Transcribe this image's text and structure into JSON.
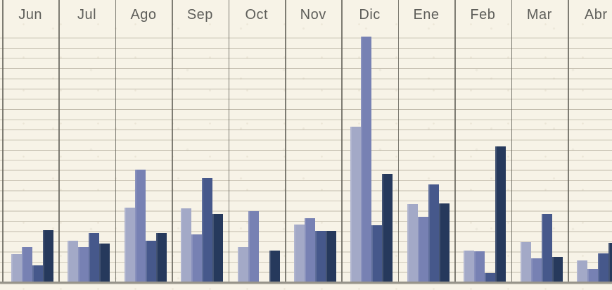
{
  "chart_data": {
    "type": "bar",
    "title": "",
    "categories": [
      "Jun",
      "Jul",
      "Ago",
      "Sep",
      "Oct",
      "Nov",
      "Dic",
      "Ene",
      "Feb",
      "Mar",
      "Abr"
    ],
    "series": [
      {
        "name": "series-1-light",
        "color": "#a3a9c7",
        "values": [
          41,
          60,
          107,
          106,
          51,
          83,
          222,
          112,
          46,
          58,
          32
        ]
      },
      {
        "name": "series-2-medium",
        "color": "#7781b3",
        "values": [
          51,
          51,
          161,
          69,
          102,
          92,
          350,
          94,
          45,
          35,
          20
        ]
      },
      {
        "name": "series-3-steel",
        "color": "#46588b",
        "values": [
          25,
          71,
          60,
          149,
          0,
          74,
          82,
          140,
          14,
          98,
          42
        ]
      },
      {
        "name": "series-4-navy",
        "color": "#26395c",
        "values": [
          75,
          56,
          71,
          98,
          46,
          74,
          155,
          113,
          194,
          37,
          57
        ]
      }
    ],
    "xlabel": "",
    "ylabel": "",
    "ylim": [
      0,
      362
    ],
    "x_axis_position": "top",
    "legend_position": "none",
    "grid": {
      "horizontal": true,
      "vertical": true
    },
    "colors": {
      "background": "#f7f3e7",
      "h_gridline": "#b2ac9b",
      "v_gridline": "#68665e",
      "baseline": "#97948a",
      "label_text": "#5e5e5a"
    }
  }
}
